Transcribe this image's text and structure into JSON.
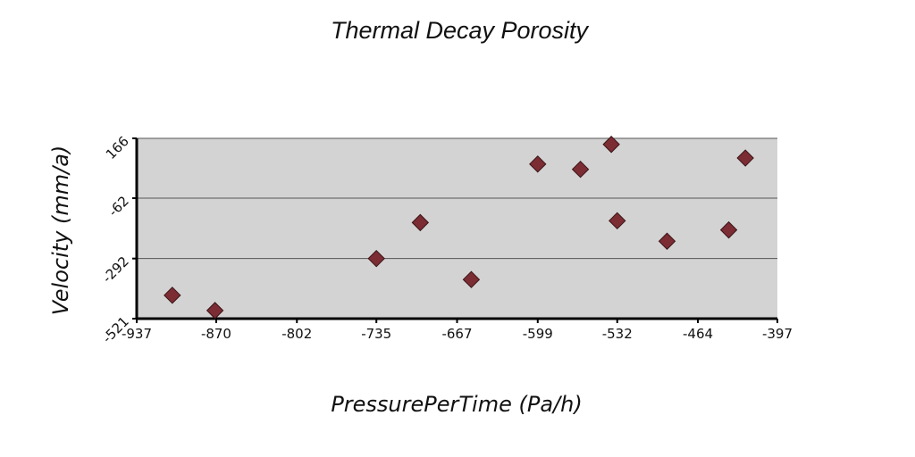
{
  "chart_data": {
    "type": "scatter",
    "title": "Thermal Decay Porosity",
    "xlabel": "PressurePerTime (Pa/h)",
    "ylabel": "Velocity (mm/a)",
    "xlim": [
      -937,
      -397
    ],
    "ylim": [
      -521,
      166
    ],
    "x_ticks": [
      "-937",
      "-870",
      "-802",
      "-735",
      "-667",
      "-599",
      "-532",
      "-464",
      "-397"
    ],
    "y_ticks": [
      "-521",
      "-292",
      "-62",
      "166"
    ],
    "grid": "horizontal",
    "legend": "none",
    "colors": {
      "plot_bg": "#d3d3d3",
      "marker": "#7b2d33",
      "marker_edge": "#3a1418",
      "grid": "#555555"
    },
    "points": [
      {
        "x": -907,
        "y": -432
      },
      {
        "x": -871,
        "y": -490
      },
      {
        "x": -735,
        "y": -292
      },
      {
        "x": -698,
        "y": -155
      },
      {
        "x": -655,
        "y": -372
      },
      {
        "x": -599,
        "y": 68
      },
      {
        "x": -563,
        "y": 48
      },
      {
        "x": -537,
        "y": 143
      },
      {
        "x": -532,
        "y": -148
      },
      {
        "x": -490,
        "y": -226
      },
      {
        "x": -438,
        "y": -183
      },
      {
        "x": -424,
        "y": 91
      }
    ]
  }
}
